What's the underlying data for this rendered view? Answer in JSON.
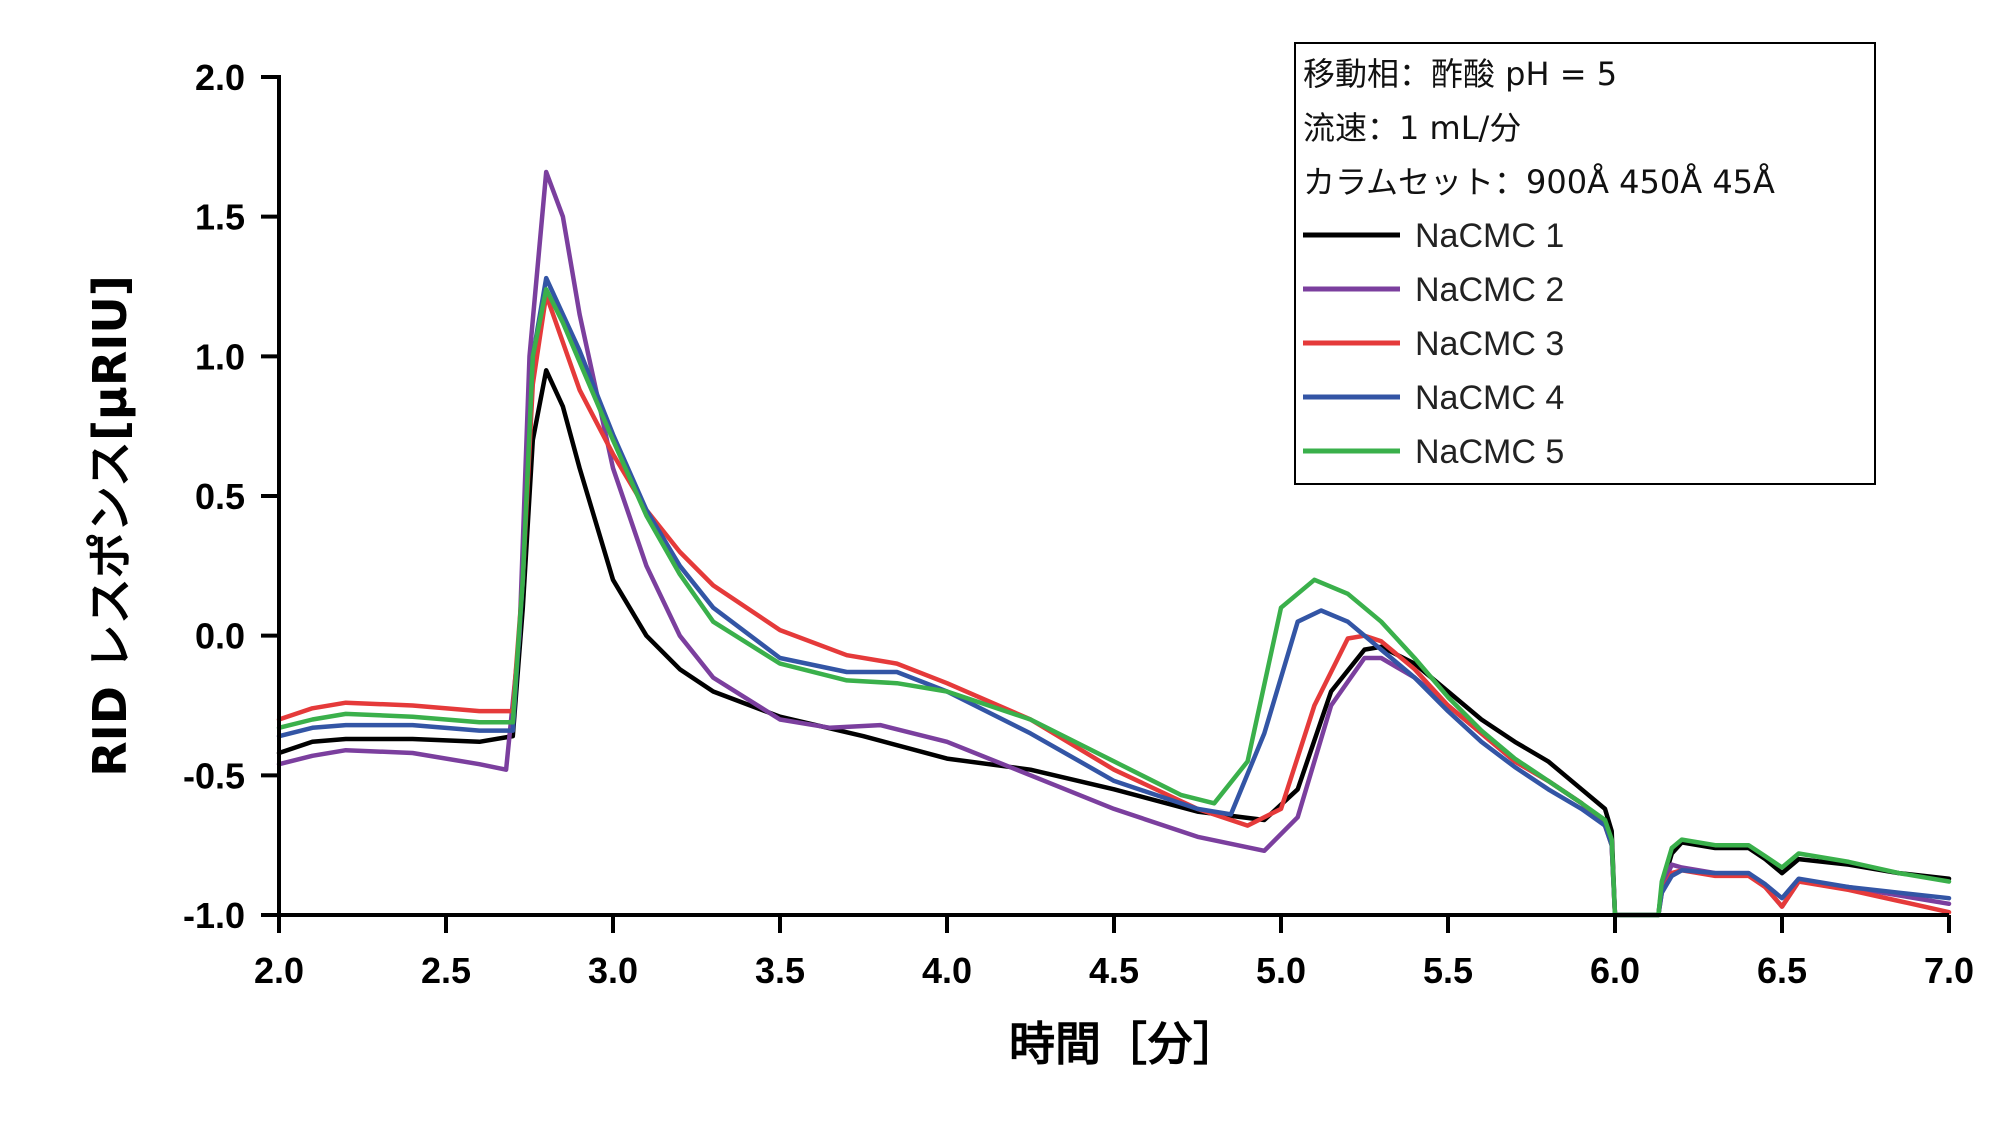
{
  "chart_data": {
    "type": "line",
    "title": "",
    "xlabel": "時間［分］",
    "ylabel": "RID レスポンス[µRIU]",
    "xlim": [
      2.0,
      7.0
    ],
    "ylim": [
      -1.0,
      2.0
    ],
    "xticks": [
      2.0,
      2.5,
      3.0,
      3.5,
      4.0,
      4.5,
      5.0,
      5.5,
      6.0,
      6.5,
      7.0
    ],
    "xtick_labels": [
      "2.0",
      "2.5",
      "3.0",
      "3.5",
      "4.0",
      "4.5",
      "5.0",
      "5.5",
      "6.0",
      "6.5",
      "7.0"
    ],
    "yticks": [
      -1.0,
      -0.5,
      0.0,
      0.5,
      1.0,
      1.5,
      2.0
    ],
    "ytick_labels": [
      "-1.0",
      "-0.5",
      "0.0",
      "0.5",
      "1.0",
      "1.5",
      "2.0"
    ],
    "grid": false,
    "legend_position": "top-right",
    "legend_notes": [
      "移動相：酢酸 pH = 5",
      "流速：1 mL/分",
      "カラムセット：900Å 450Å 45Å"
    ],
    "series": [
      {
        "name": "NaCMC 1",
        "color": "#000000",
        "x": [
          2.0,
          2.1,
          2.2,
          2.4,
          2.6,
          2.7,
          2.73,
          2.76,
          2.8,
          2.85,
          2.9,
          3.0,
          3.1,
          3.2,
          3.3,
          3.5,
          3.75,
          4.0,
          4.25,
          4.5,
          4.75,
          4.95,
          5.05,
          5.15,
          5.25,
          5.3,
          5.4,
          5.5,
          5.6,
          5.7,
          5.8,
          5.9,
          5.97,
          5.99,
          6.0,
          6.13,
          6.14,
          6.17,
          6.2,
          6.3,
          6.4,
          6.45,
          6.5,
          6.55,
          6.7,
          6.85,
          7.0
        ],
        "y": [
          -0.42,
          -0.38,
          -0.37,
          -0.37,
          -0.38,
          -0.36,
          0.1,
          0.7,
          0.95,
          0.82,
          0.6,
          0.2,
          0.0,
          -0.12,
          -0.2,
          -0.29,
          -0.36,
          -0.44,
          -0.48,
          -0.55,
          -0.63,
          -0.66,
          -0.55,
          -0.2,
          -0.05,
          -0.04,
          -0.1,
          -0.2,
          -0.3,
          -0.38,
          -0.45,
          -0.55,
          -0.62,
          -0.7,
          -1.0,
          -1.0,
          -0.9,
          -0.78,
          -0.74,
          -0.76,
          -0.76,
          -0.8,
          -0.85,
          -0.8,
          -0.82,
          -0.85,
          -0.87
        ]
      },
      {
        "name": "NaCMC 2",
        "color": "#7b3f9e",
        "x": [
          2.0,
          2.1,
          2.2,
          2.4,
          2.6,
          2.68,
          2.72,
          2.75,
          2.8,
          2.85,
          2.9,
          3.0,
          3.1,
          3.2,
          3.3,
          3.5,
          3.65,
          3.8,
          4.0,
          4.25,
          4.5,
          4.75,
          4.95,
          5.05,
          5.15,
          5.25,
          5.3,
          5.4,
          5.5,
          5.6,
          5.7,
          5.8,
          5.9,
          5.97,
          5.99,
          6.0,
          6.13,
          6.14,
          6.17,
          6.2,
          6.3,
          6.4,
          6.45,
          6.5,
          6.55,
          6.7,
          6.85,
          7.0
        ],
        "y": [
          -0.46,
          -0.43,
          -0.41,
          -0.42,
          -0.46,
          -0.48,
          0.0,
          1.0,
          1.66,
          1.5,
          1.15,
          0.6,
          0.25,
          0.0,
          -0.15,
          -0.3,
          -0.33,
          -0.32,
          -0.38,
          -0.5,
          -0.62,
          -0.72,
          -0.77,
          -0.65,
          -0.25,
          -0.08,
          -0.08,
          -0.15,
          -0.25,
          -0.35,
          -0.45,
          -0.52,
          -0.6,
          -0.67,
          -0.75,
          -1.0,
          -1.0,
          -0.9,
          -0.82,
          -0.83,
          -0.85,
          -0.85,
          -0.9,
          -0.97,
          -0.88,
          -0.9,
          -0.93,
          -0.96
        ]
      },
      {
        "name": "NaCMC 3",
        "color": "#e53a3a",
        "x": [
          2.0,
          2.1,
          2.2,
          2.4,
          2.6,
          2.7,
          2.73,
          2.76,
          2.8,
          2.85,
          2.9,
          3.0,
          3.1,
          3.2,
          3.3,
          3.5,
          3.7,
          3.85,
          4.0,
          4.25,
          4.5,
          4.75,
          4.9,
          5.0,
          5.1,
          5.2,
          5.25,
          5.3,
          5.4,
          5.5,
          5.6,
          5.7,
          5.8,
          5.9,
          5.97,
          5.99,
          6.0,
          6.13,
          6.14,
          6.17,
          6.2,
          6.3,
          6.4,
          6.45,
          6.5,
          6.55,
          6.7,
          6.85,
          7.0
        ],
        "y": [
          -0.3,
          -0.26,
          -0.24,
          -0.25,
          -0.27,
          -0.27,
          0.2,
          0.9,
          1.22,
          1.05,
          0.88,
          0.65,
          0.45,
          0.3,
          0.18,
          0.02,
          -0.07,
          -0.1,
          -0.17,
          -0.3,
          -0.48,
          -0.62,
          -0.68,
          -0.62,
          -0.25,
          -0.01,
          0.0,
          -0.02,
          -0.12,
          -0.25,
          -0.35,
          -0.45,
          -0.52,
          -0.6,
          -0.68,
          -0.75,
          -1.0,
          -1.0,
          -0.92,
          -0.85,
          -0.84,
          -0.86,
          -0.86,
          -0.9,
          -0.97,
          -0.88,
          -0.91,
          -0.95,
          -0.99
        ]
      },
      {
        "name": "NaCMC 4",
        "color": "#3355a5",
        "x": [
          2.0,
          2.1,
          2.2,
          2.4,
          2.6,
          2.7,
          2.73,
          2.76,
          2.8,
          2.85,
          2.9,
          3.0,
          3.1,
          3.2,
          3.3,
          3.5,
          3.7,
          3.85,
          4.0,
          4.25,
          4.5,
          4.75,
          4.85,
          4.95,
          5.05,
          5.12,
          5.2,
          5.3,
          5.4,
          5.5,
          5.6,
          5.7,
          5.8,
          5.9,
          5.97,
          5.99,
          6.0,
          6.13,
          6.14,
          6.17,
          6.2,
          6.3,
          6.4,
          6.45,
          6.5,
          6.55,
          6.7,
          6.85,
          7.0
        ],
        "y": [
          -0.36,
          -0.33,
          -0.32,
          -0.32,
          -0.34,
          -0.34,
          0.2,
          1.0,
          1.28,
          1.15,
          1.02,
          0.72,
          0.45,
          0.25,
          0.1,
          -0.08,
          -0.13,
          -0.13,
          -0.2,
          -0.35,
          -0.52,
          -0.62,
          -0.64,
          -0.35,
          0.05,
          0.09,
          0.05,
          -0.05,
          -0.15,
          -0.27,
          -0.38,
          -0.47,
          -0.55,
          -0.62,
          -0.68,
          -0.75,
          -1.0,
          -1.0,
          -0.92,
          -0.86,
          -0.84,
          -0.85,
          -0.85,
          -0.89,
          -0.94,
          -0.87,
          -0.9,
          -0.92,
          -0.94
        ]
      },
      {
        "name": "NaCMC 5",
        "color": "#3ab04b",
        "x": [
          2.0,
          2.1,
          2.2,
          2.4,
          2.6,
          2.7,
          2.73,
          2.76,
          2.8,
          2.85,
          2.9,
          3.0,
          3.1,
          3.2,
          3.3,
          3.5,
          3.7,
          3.85,
          4.0,
          4.25,
          4.5,
          4.7,
          4.8,
          4.9,
          5.0,
          5.1,
          5.2,
          5.3,
          5.4,
          5.5,
          5.6,
          5.7,
          5.8,
          5.9,
          5.97,
          5.99,
          6.0,
          6.13,
          6.14,
          6.17,
          6.2,
          6.3,
          6.4,
          6.45,
          6.5,
          6.55,
          6.7,
          6.85,
          7.0
        ],
        "y": [
          -0.33,
          -0.3,
          -0.28,
          -0.29,
          -0.31,
          -0.31,
          0.2,
          1.0,
          1.24,
          1.12,
          0.98,
          0.7,
          0.43,
          0.22,
          0.05,
          -0.1,
          -0.16,
          -0.17,
          -0.2,
          -0.3,
          -0.45,
          -0.57,
          -0.6,
          -0.45,
          0.1,
          0.2,
          0.15,
          0.05,
          -0.08,
          -0.22,
          -0.34,
          -0.44,
          -0.52,
          -0.6,
          -0.66,
          -0.73,
          -1.0,
          -1.0,
          -0.88,
          -0.76,
          -0.73,
          -0.75,
          -0.75,
          -0.79,
          -0.83,
          -0.78,
          -0.81,
          -0.85,
          -0.88
        ]
      }
    ]
  }
}
